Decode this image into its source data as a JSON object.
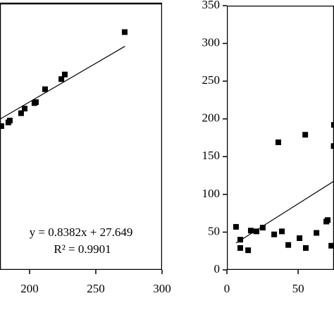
{
  "chart_data": [
    {
      "type": "scatter",
      "x": [
        271.8,
        226.6,
        224,
        211.7,
        204.8,
        203.7,
        196.3,
        193.6,
        185.1,
        184,
        178.7
      ],
      "values": [
        271,
        225,
        220,
        209,
        195,
        194,
        188,
        183,
        175,
        173,
        169
      ],
      "color": "#000000",
      "trendline": {
        "x": [
          178,
          272
        ],
        "y": [
          176.8,
          255.6
        ]
      },
      "annotations": [
        "y = 0.8382x + 27.649",
        "R² = 0.9901"
      ],
      "xlim": [
        177.7,
        300
      ],
      "xticks": [
        200,
        250,
        300
      ],
      "ylim": [
        13,
        302
      ]
    },
    {
      "type": "scatter",
      "x": [
        6.4,
        9.4,
        9.4,
        14.9,
        16.8,
        20.8,
        25.2,
        33.2,
        36.1,
        38.6,
        43.1,
        51,
        55,
        55.4,
        62.9,
        69.8,
        70.8,
        73.3,
        75.2,
        75
      ],
      "values": [
        57,
        40,
        29,
        26,
        52,
        51,
        56,
        47,
        169,
        51,
        33,
        42,
        179,
        29,
        49,
        64,
        66,
        32,
        192,
        164
      ],
      "color": "#000000",
      "trendline": {
        "x": [
          6.4,
          75.2
        ],
        "y": [
          35.5,
          117.6
        ]
      },
      "xlim": [
        0,
        75.2
      ],
      "xticks": [
        0,
        50
      ],
      "ylim": [
        0,
        350
      ],
      "yticks": [
        0,
        50,
        100,
        150,
        200,
        250,
        300,
        350
      ]
    }
  ]
}
